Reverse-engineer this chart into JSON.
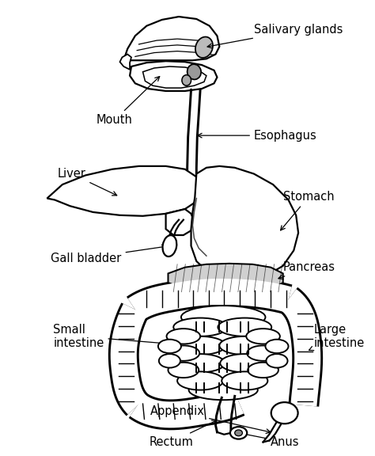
{
  "background_color": "#ffffff",
  "line_color": "#000000",
  "line_width": 1.6,
  "font_size": 10.5,
  "fig_width": 4.74,
  "fig_height": 5.76,
  "labels": {
    "salivary_glands": "Salivary glands",
    "mouth": "Mouth",
    "esophagus": "Esophagus",
    "liver": "Liver",
    "stomach": "Stomach",
    "gall_bladder": "Gall bladder",
    "pancreas": "Pancreas",
    "small_intestine": "Small\nintestine",
    "large_intestine": "Large\nintestine",
    "appendix": "Appendix",
    "rectum": "Rectum",
    "anus": "Anus"
  }
}
